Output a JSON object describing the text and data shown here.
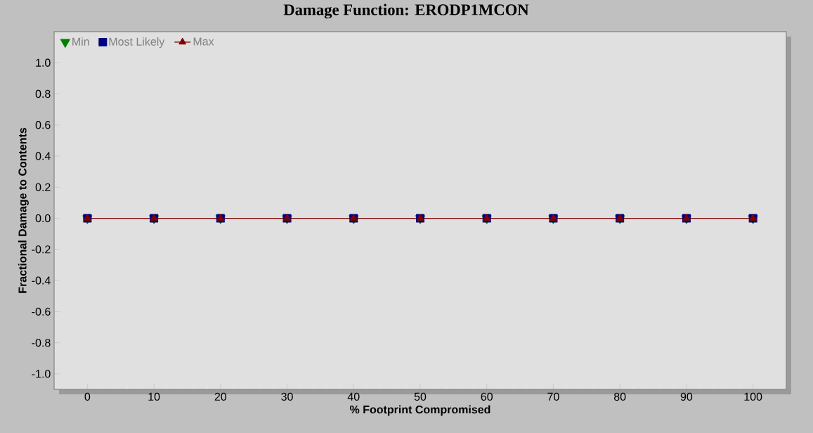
{
  "chart_data": {
    "type": "line",
    "title": "Damage Function: ERODP1MCON",
    "xlabel": "% Footprint Compromised",
    "ylabel": "Fractional Damage to Contents",
    "x": [
      0,
      10,
      20,
      30,
      40,
      50,
      60,
      70,
      80,
      90,
      100
    ],
    "series": [
      {
        "name": "Min",
        "type": "scatter",
        "color": "#008000",
        "marker": "triangle_down",
        "values": [
          0,
          0,
          0,
          0,
          0,
          0,
          0,
          0,
          0,
          0,
          0
        ]
      },
      {
        "name": "Most Likely",
        "type": "scatter",
        "color": "#000080",
        "marker": "square",
        "values": [
          0,
          0,
          0,
          0,
          0,
          0,
          0,
          0,
          0,
          0,
          0
        ]
      },
      {
        "name": "Max",
        "color": "#800000",
        "marker": "triangle",
        "values": [
          0,
          0,
          0,
          0,
          0,
          0,
          0,
          0,
          0,
          0,
          0
        ]
      }
    ],
    "xlim": [
      -5,
      105
    ],
    "xticks": [
      0,
      10,
      20,
      30,
      40,
      50,
      60,
      70,
      80,
      90,
      100
    ],
    "ylim": [
      -1.1,
      1.2
    ],
    "yticks": [
      {
        "value": -1.0,
        "label": "-1.0"
      },
      {
        "value": -0.8,
        "label": "-0.8"
      },
      {
        "value": -0.6,
        "label": "-0.6"
      },
      {
        "value": -0.4,
        "label": "-0.4"
      },
      {
        "value": -0.2,
        "label": "-0.2"
      },
      {
        "value": 0.0,
        "label": "0.0"
      },
      {
        "value": 0.2,
        "label": "0.2"
      },
      {
        "value": 0.4,
        "label": "0.4"
      },
      {
        "value": 0.6,
        "label": "0.6"
      },
      {
        "value": 0.8,
        "label": "0.8"
      },
      {
        "value": 1.0,
        "label": "1.0"
      }
    ],
    "legend": "top left",
    "grid": false,
    "line_style": "solid"
  }
}
